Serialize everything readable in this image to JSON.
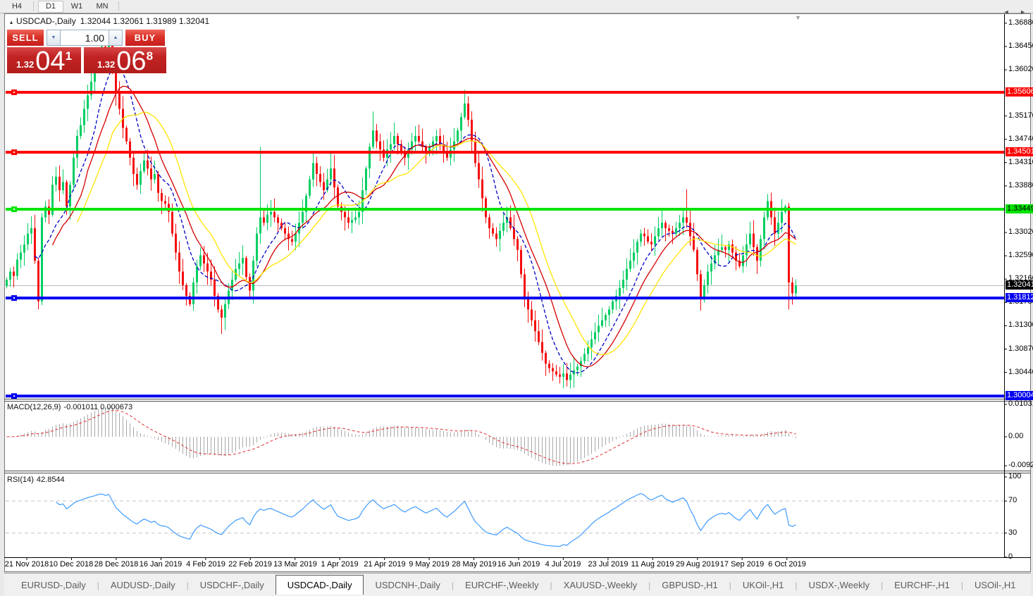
{
  "toolbar": {
    "buttons": [
      {
        "label": "H4",
        "active": false
      },
      {
        "label": "D1",
        "active": true
      },
      {
        "label": "W1",
        "active": false
      },
      {
        "label": "MN",
        "active": false
      }
    ]
  },
  "chart": {
    "collapse_icon": "▴",
    "title_symbol": "USDCAD-,Daily",
    "title_ohlc": "1.32044 1.32061 1.31989 1.32041",
    "shift_marker_icon": "▼"
  },
  "trade_panel": {
    "sell_label": "SELL",
    "buy_label": "BUY",
    "volume": "1.00",
    "volume_down_icon": "▼",
    "volume_up_icon": "▲",
    "bid": {
      "small": "1.32",
      "big": "04",
      "sup": "1"
    },
    "ask": {
      "small": "1.32",
      "big": "06",
      "sup": "8"
    }
  },
  "macd_panel": {
    "label": "MACD(12,26,9)",
    "values": "-0.001011 0.000673"
  },
  "rsi_panel": {
    "label": "RSI(14)",
    "value": "42.8544"
  },
  "tabs": {
    "scroll_left_icon": "◄",
    "scroll_right_icon": "►",
    "items": [
      {
        "label": "EURUSD-,Daily",
        "active": false
      },
      {
        "label": "AUDUSD-,Daily",
        "active": false
      },
      {
        "label": "USDCHF-,Daily",
        "active": false
      },
      {
        "label": "USDCAD-,Daily",
        "active": true
      },
      {
        "label": "USDCNH-,Daily",
        "active": false
      },
      {
        "label": "EURCHF-,Weekly",
        "active": false
      },
      {
        "label": "XAUUSD-,Weekly",
        "active": false
      },
      {
        "label": "GBPUSD-,H1",
        "active": false
      },
      {
        "label": "UKOil-,H1",
        "active": false
      },
      {
        "label": "USDX-,Weekly",
        "active": false
      },
      {
        "label": "EURCHF-,H1",
        "active": false
      },
      {
        "label": "USOil-,H1",
        "active": false
      }
    ]
  },
  "chart_data": {
    "type": "candlestick",
    "symbol": "USDCAD",
    "timeframe": "Daily",
    "ohlc_display": {
      "open": 1.32044,
      "high": 1.32061,
      "low": 1.31989,
      "close": 1.32041
    },
    "bid": 1.32041,
    "ask": 1.32068,
    "y_range": [
      1.298,
      1.369
    ],
    "y_tick_labels": [
      "1.36880",
      "1.36450",
      "1.36020",
      "1.35170",
      "1.34740",
      "1.34310",
      "1.33880",
      "1.33020",
      "1.32590",
      "1.32160",
      "1.31730",
      "1.31300",
      "1.30870",
      "1.30440"
    ],
    "x_tick_labels": [
      "21 Nov 2018",
      "10 Dec 2018",
      "28 Dec 2018",
      "16 Jan 2019",
      "4 Feb 2019",
      "22 Feb 2019",
      "13 Mar 2019",
      "1 Apr 2019",
      "21 Apr 2019",
      "9 May 2019",
      "28 May 2019",
      "16 Jun 2019",
      "4 Jul 2019",
      "23 Jul 2019",
      "11 Aug 2019",
      "29 Aug 2019",
      "17 Sep 2019",
      "6 Oct 2019"
    ],
    "closes": [
      1.3215,
      1.323,
      1.3222,
      1.3252,
      1.3265,
      1.328,
      1.33,
      1.331,
      1.325,
      1.3175,
      1.333,
      1.335,
      1.3335,
      1.339,
      1.3405,
      1.338,
      1.3395,
      1.335,
      1.339,
      1.344,
      1.348,
      1.35,
      1.353,
      1.3555,
      1.358,
      1.36,
      1.363,
      1.3645,
      1.3635,
      1.3655,
      1.361,
      1.356,
      1.353,
      1.3495,
      1.347,
      1.344,
      1.341,
      1.339,
      1.3415,
      1.3435,
      1.342,
      1.34,
      1.341,
      1.3375,
      1.336,
      1.3355,
      1.334,
      1.33,
      1.3265,
      1.323,
      1.3205,
      1.3185,
      1.317,
      1.321,
      1.324,
      1.326,
      1.3245,
      1.323,
      1.3215,
      1.3185,
      1.316,
      1.3145,
      1.317,
      1.3195,
      1.3215,
      1.3235,
      1.3245,
      1.3255,
      1.322,
      1.3195,
      1.325,
      1.33,
      1.333,
      1.332,
      1.3335,
      1.334,
      1.333,
      1.332,
      1.331,
      1.33,
      1.329,
      1.3285,
      1.33,
      1.332,
      1.334,
      1.337,
      1.34,
      1.343,
      1.341,
      1.3395,
      1.338,
      1.34,
      1.342,
      1.3385,
      1.335,
      1.334,
      1.333,
      1.332,
      1.3325,
      1.333,
      1.334,
      1.338,
      1.342,
      1.346,
      1.349,
      1.347,
      1.3455,
      1.344,
      1.3455,
      1.3465,
      1.348,
      1.3465,
      1.345,
      1.344,
      1.3455,
      1.347,
      1.348,
      1.347,
      1.346,
      1.345,
      1.346,
      1.347,
      1.348,
      1.3465,
      1.345,
      1.344,
      1.3455,
      1.347,
      1.349,
      1.3515,
      1.354,
      1.351,
      1.347,
      1.343,
      1.34,
      1.3365,
      1.333,
      1.331,
      1.33,
      1.329,
      1.3305,
      1.332,
      1.333,
      1.331,
      1.329,
      1.327,
      1.3225,
      1.318,
      1.316,
      1.314,
      1.312,
      1.31,
      1.308,
      1.306,
      1.3052,
      1.3046,
      1.304,
      1.3036,
      1.3042,
      1.303,
      1.304,
      1.3048,
      1.3055,
      1.3065,
      1.3078,
      1.309,
      1.3105,
      1.3118,
      1.313,
      1.314,
      1.315,
      1.316,
      1.3175,
      1.3185,
      1.32,
      1.3215,
      1.3235,
      1.325,
      1.3265,
      1.3285,
      1.33,
      1.3295,
      1.3285,
      1.328,
      1.3295,
      1.331,
      1.332,
      1.331,
      1.3305,
      1.33,
      1.331,
      1.332,
      1.333,
      1.332,
      1.3295,
      1.327,
      1.3225,
      1.318,
      1.3205,
      1.323,
      1.3245,
      1.326,
      1.327,
      1.3275,
      1.327,
      1.328,
      1.3265,
      1.325,
      1.324,
      1.326,
      1.328,
      1.33,
      1.3275,
      1.325,
      1.329,
      1.333,
      1.336,
      1.333,
      1.33,
      1.332,
      1.334,
      1.335,
      1.321,
      1.319,
      1.3204
    ],
    "wick_overrides": {
      "9": {
        "l": 1.316
      },
      "10": {
        "l": 1.3168
      },
      "29": {
        "h": 1.3665
      },
      "61": {
        "l": 1.3115
      },
      "72": {
        "h": 1.346
      },
      "87": {
        "h": 1.3452
      },
      "92": {
        "h": 1.3452
      },
      "104": {
        "h": 1.3525
      },
      "130": {
        "h": 1.3565
      },
      "159": {
        "l": 1.3018
      },
      "193": {
        "h": 1.3382
      },
      "197": {
        "l": 1.3158
      },
      "222": {
        "l": 1.316
      }
    },
    "moving_averages": [
      {
        "name": "fast-blue",
        "period": 9,
        "color": "#0000C8",
        "dashed": true
      },
      {
        "name": "medium-red",
        "period": 14,
        "color": "#D40000",
        "dashed": false
      },
      {
        "name": "slow-yellow",
        "period": 21,
        "color": "#FFE400",
        "dashed": false
      }
    ],
    "levels": [
      {
        "price": 1.35606,
        "label": "1.35606",
        "color": "#FE0000",
        "text_color": "#FFFFFF"
      },
      {
        "price": 1.34501,
        "label": "1.34501",
        "color": "#FE0000",
        "text_color": "#FFFFFF"
      },
      {
        "price": 1.33449,
        "label": "1.33449",
        "color": "#00E400",
        "text_color": "#000000"
      },
      {
        "price": 1.31812,
        "label": "1.31812",
        "color": "#0000F0",
        "text_color": "#FFFFFF"
      },
      {
        "price": 1.30004,
        "label": "1.30004",
        "color": "#0000F0",
        "text_color": "#FFFFFF"
      }
    ],
    "current_price": {
      "value": 1.32041,
      "label": "1.32041"
    },
    "macd": {
      "fast": 12,
      "slow": 26,
      "signal": 9,
      "current_macd": -0.001011,
      "current_signal": 0.000673,
      "scale": [
        {
          "label": "0.010311",
          "value": 0.010311
        },
        {
          "label": "0.00",
          "value": 0
        },
        {
          "label": "-0.009203",
          "value": -0.009203
        }
      ]
    },
    "rsi": {
      "period": 14,
      "current": 42.8544,
      "scale": [
        {
          "label": "100",
          "value": 100
        },
        {
          "label": "70",
          "value": 70
        },
        {
          "label": "30",
          "value": 30
        },
        {
          "label": "0",
          "value": 0
        }
      ],
      "dashed_levels": [
        70,
        30
      ]
    },
    "colors": {
      "bull": "#00CE63",
      "bear": "#F50C0C",
      "macd_hist": "#A8A8A8",
      "macd_signal": "#E03030",
      "rsi_line": "#3E9BFF",
      "current_price_line": "#B9B9B9"
    }
  }
}
